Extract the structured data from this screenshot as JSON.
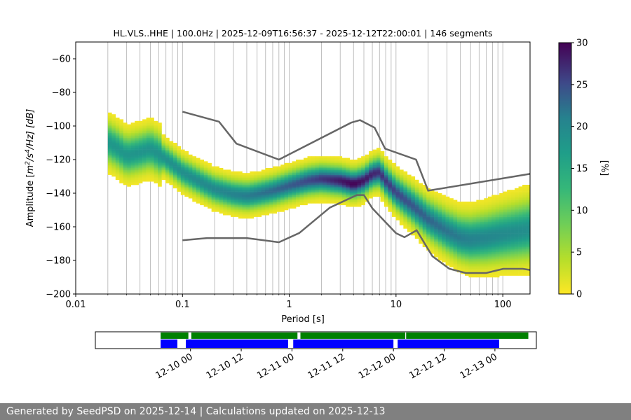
{
  "chart_data": [
    {
      "type": "heatmap",
      "title": "HL.VLS..HHE | 100.0Hz | 2025-12-09T16:56:37 - 2025-12-12T22:00:01 | 146 segments",
      "xlabel": "Period [s]",
      "ylabel_prefix": "Amplitude [",
      "ylabel_m": "m",
      "ylabel_sup1": "2",
      "ylabel_mid": "/s",
      "ylabel_sup2": "4",
      "ylabel_suffix": "/Hz] [dB]",
      "x_scale": "log",
      "xlim": [
        0.01,
        180
      ],
      "ylim": [
        -200,
        -50
      ],
      "x_ticks": [
        {
          "v": 0.01,
          "label": "0.01"
        },
        {
          "v": 0.1,
          "label": "0.1"
        },
        {
          "v": 1,
          "label": "1"
        },
        {
          "v": 10,
          "label": "10"
        },
        {
          "v": 100,
          "label": "100"
        }
      ],
      "y_ticks": [
        {
          "v": -60,
          "label": "−60"
        },
        {
          "v": -80,
          "label": "−80"
        },
        {
          "v": -100,
          "label": "−100"
        },
        {
          "v": -120,
          "label": "−120"
        },
        {
          "v": -140,
          "label": "−140"
        },
        {
          "v": -160,
          "label": "−160"
        },
        {
          "v": -180,
          "label": "−180"
        },
        {
          "v": -200,
          "label": "−200"
        }
      ],
      "grid": true,
      "colorbar": {
        "label": "[%]",
        "range": [
          0,
          30
        ],
        "ticks": [
          {
            "v": 0,
            "label": "0"
          },
          {
            "v": 5,
            "label": "5"
          },
          {
            "v": 10,
            "label": "10"
          },
          {
            "v": 15,
            "label": "15"
          },
          {
            "v": 20,
            "label": "20"
          },
          {
            "v": 25,
            "label": "25"
          },
          {
            "v": 30,
            "label": "30"
          }
        ],
        "colormap": "viridis_r"
      },
      "psd_mode_curve": [
        [
          0.02,
          -110
        ],
        [
          0.025,
          -114
        ],
        [
          0.03,
          -118
        ],
        [
          0.04,
          -116
        ],
        [
          0.05,
          -114
        ],
        [
          0.06,
          -117
        ],
        [
          0.08,
          -123
        ],
        [
          0.1,
          -128
        ],
        [
          0.15,
          -134
        ],
        [
          0.2,
          -138
        ],
        [
          0.3,
          -141
        ],
        [
          0.4,
          -142
        ],
        [
          0.5,
          -141
        ],
        [
          0.7,
          -139
        ],
        [
          1.0,
          -136
        ],
        [
          1.5,
          -133
        ],
        [
          2.0,
          -132
        ],
        [
          3.0,
          -133
        ],
        [
          4.0,
          -135
        ],
        [
          5.0,
          -133
        ],
        [
          6.0,
          -129
        ],
        [
          7.0,
          -128
        ],
        [
          8.0,
          -133
        ],
        [
          10.0,
          -140
        ],
        [
          15.0,
          -149
        ],
        [
          20.0,
          -156
        ],
        [
          30.0,
          -163
        ],
        [
          40.0,
          -167
        ],
        [
          50.0,
          -168
        ],
        [
          70.0,
          -167
        ],
        [
          100.0,
          -165
        ],
        [
          150.0,
          -163
        ],
        [
          180.0,
          -162
        ]
      ],
      "psd_spread_db": 6,
      "high_noise_model": [
        [
          0.1,
          -91.5
        ],
        [
          0.22,
          -97.4
        ],
        [
          0.32,
          -110.5
        ],
        [
          0.8,
          -120
        ],
        [
          3.8,
          -98
        ],
        [
          4.6,
          -96.5
        ],
        [
          6.3,
          -101
        ],
        [
          7.9,
          -113.5
        ],
        [
          15.4,
          -120
        ],
        [
          20,
          -138.5
        ],
        [
          180,
          -128.5
        ]
      ],
      "low_noise_model": [
        [
          0.1,
          -168
        ],
        [
          0.17,
          -166.7
        ],
        [
          0.4,
          -166.7
        ],
        [
          0.8,
          -169.2
        ],
        [
          1.24,
          -163.7
        ],
        [
          2.4,
          -148.6
        ],
        [
          4.3,
          -141.1
        ],
        [
          5.0,
          -141.1
        ],
        [
          6.0,
          -149
        ],
        [
          10,
          -163.8
        ],
        [
          12,
          -166.2
        ],
        [
          15.6,
          -162.1
        ],
        [
          21.9,
          -177.5
        ],
        [
          31.6,
          -185
        ],
        [
          45,
          -187.5
        ],
        [
          70,
          -187.5
        ],
        [
          101,
          -185
        ],
        [
          154,
          -185
        ],
        [
          180,
          -185.7
        ]
      ]
    },
    {
      "type": "timeline",
      "x_ticks": [
        "12-10 00",
        "12-10 12",
        "12-11 00",
        "12-11 12",
        "12-12 00",
        "12-12 12",
        "12-13 00"
      ],
      "x_tick_hours": [
        0,
        12,
        24,
        36,
        48,
        60,
        72
      ],
      "xlim_hours": [
        -22.5,
        81.8
      ],
      "data_segments_hours": [
        [
          -7.06,
          -3.1
        ],
        [
          -1.1,
          23.1
        ],
        [
          24.3,
          48.0
        ],
        [
          49.0,
          73.0
        ]
      ],
      "processed_segments_hours": [
        [
          -7.06,
          -0.5
        ],
        [
          0.2,
          25.3
        ],
        [
          26.0,
          50.8
        ],
        [
          51.0,
          79.9
        ]
      ],
      "colors": {
        "data": "#0000ff",
        "processed": "#008000"
      }
    }
  ],
  "footer": {
    "text": "Generated by SeedPSD on 2025-12-14 | Calculations updated on 2025-12-13"
  }
}
